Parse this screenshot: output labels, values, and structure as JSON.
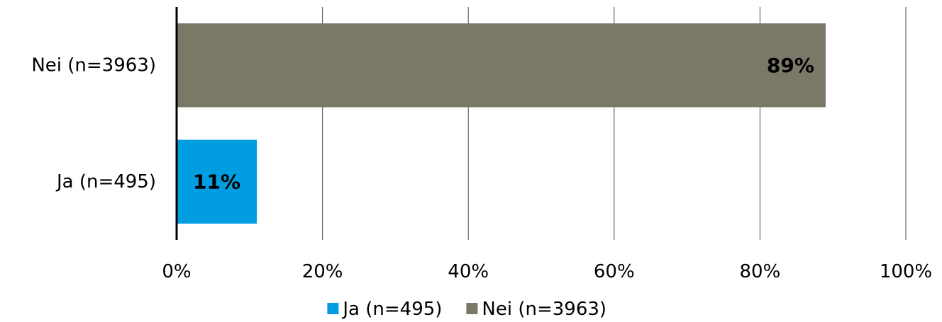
{
  "chart_data": {
    "type": "bar",
    "orientation": "horizontal",
    "categories": [
      "Nei (n=3963)",
      "Ja (n=495)"
    ],
    "values": [
      89,
      11
    ],
    "value_labels": [
      "89%",
      "11%"
    ],
    "colors": [
      "#7a7866",
      "#009ee0"
    ],
    "xlim": [
      0,
      100
    ],
    "x_ticks": [
      0,
      20,
      40,
      60,
      80,
      100
    ],
    "x_tick_labels": [
      "0%",
      "20%",
      "40%",
      "60%",
      "80%",
      "100%"
    ],
    "grid": "vertical",
    "legend": {
      "placement": "bottom",
      "items": [
        {
          "label": "Ja (n=495)",
          "color": "#009ee0"
        },
        {
          "label": "Nei (n=3963)",
          "color": "#7a7866"
        }
      ]
    }
  }
}
